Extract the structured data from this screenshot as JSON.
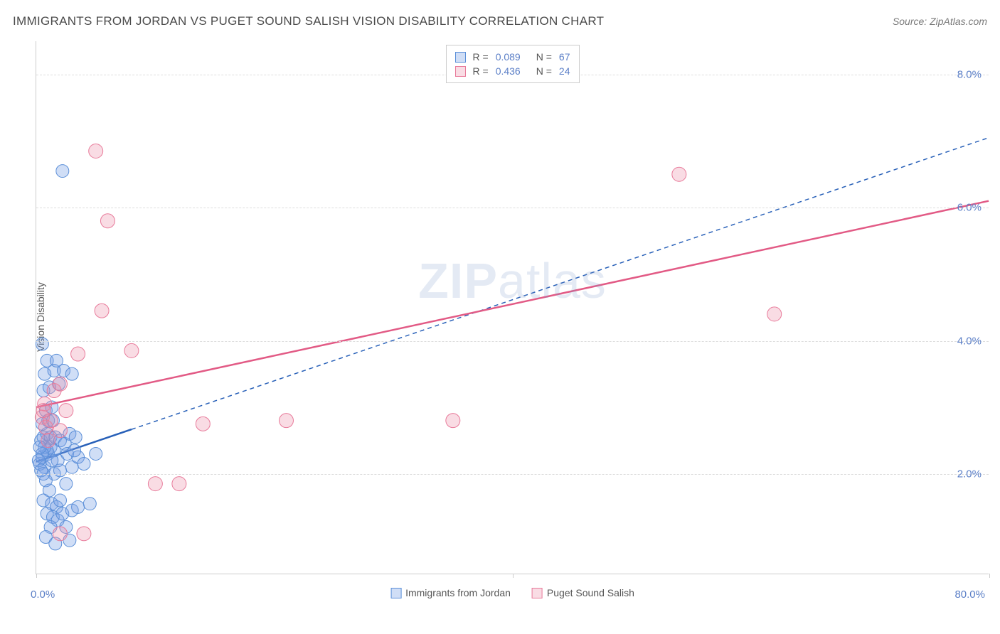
{
  "title": "IMMIGRANTS FROM JORDAN VS PUGET SOUND SALISH VISION DISABILITY CORRELATION CHART",
  "source": "Source: ZipAtlas.com",
  "y_axis_label": "Vision Disability",
  "watermark_bold": "ZIP",
  "watermark_rest": "atlas",
  "chart": {
    "type": "scatter",
    "xlim": [
      0,
      80
    ],
    "ylim": [
      0.5,
      8.5
    ],
    "x_ticks": [
      0,
      40,
      80
    ],
    "x_tick_labels": [
      "0.0%",
      "",
      "80.0%"
    ],
    "y_ticks": [
      2,
      4,
      6,
      8
    ],
    "y_tick_labels": [
      "2.0%",
      "4.0%",
      "6.0%",
      "8.0%"
    ],
    "grid_color": "#dddddd",
    "axis_color": "#cccccc",
    "background_color": "#ffffff",
    "label_fontsize": 14,
    "tick_label_color": "#5b7fc7",
    "tick_fontsize": 15
  },
  "series": [
    {
      "name": "Immigrants from Jordan",
      "color_fill": "rgba(120,160,230,0.35)",
      "color_stroke": "#5b8fd8",
      "marker_radius": 9,
      "trend_line_color": "#2860b8",
      "trend_line_style": "solid-then-dashed",
      "trend_solid_end_x": 8,
      "trend_start": {
        "x": 0.0,
        "y": 2.18
      },
      "trend_end": {
        "x": 80.0,
        "y": 7.05
      },
      "R": "0.089",
      "N": "67",
      "points": [
        {
          "x": 0.3,
          "y": 2.15
        },
        {
          "x": 0.5,
          "y": 2.25
        },
        {
          "x": 0.7,
          "y": 2.1
        },
        {
          "x": 1.0,
          "y": 2.3
        },
        {
          "x": 1.2,
          "y": 2.4
        },
        {
          "x": 1.5,
          "y": 2.0
        },
        {
          "x": 0.8,
          "y": 1.9
        },
        {
          "x": 1.1,
          "y": 1.75
        },
        {
          "x": 0.6,
          "y": 1.6
        },
        {
          "x": 1.3,
          "y": 1.55
        },
        {
          "x": 1.7,
          "y": 1.5
        },
        {
          "x": 2.0,
          "y": 1.6
        },
        {
          "x": 0.9,
          "y": 1.4
        },
        {
          "x": 1.4,
          "y": 1.35
        },
        {
          "x": 1.8,
          "y": 1.3
        },
        {
          "x": 2.2,
          "y": 1.4
        },
        {
          "x": 3.0,
          "y": 1.45
        },
        {
          "x": 3.5,
          "y": 1.5
        },
        {
          "x": 1.2,
          "y": 1.2
        },
        {
          "x": 2.5,
          "y": 1.2
        },
        {
          "x": 0.8,
          "y": 1.05
        },
        {
          "x": 1.6,
          "y": 0.95
        },
        {
          "x": 2.8,
          "y": 1.0
        },
        {
          "x": 0.4,
          "y": 2.5
        },
        {
          "x": 0.6,
          "y": 2.55
        },
        {
          "x": 0.9,
          "y": 2.6
        },
        {
          "x": 1.2,
          "y": 2.55
        },
        {
          "x": 1.6,
          "y": 2.55
        },
        {
          "x": 2.0,
          "y": 2.5
        },
        {
          "x": 2.4,
          "y": 2.45
        },
        {
          "x": 0.5,
          "y": 2.75
        },
        {
          "x": 1.0,
          "y": 2.8
        },
        {
          "x": 1.4,
          "y": 2.8
        },
        {
          "x": 0.8,
          "y": 2.95
        },
        {
          "x": 1.3,
          "y": 3.0
        },
        {
          "x": 0.6,
          "y": 3.25
        },
        {
          "x": 1.1,
          "y": 3.3
        },
        {
          "x": 1.9,
          "y": 3.35
        },
        {
          "x": 0.7,
          "y": 3.5
        },
        {
          "x": 1.5,
          "y": 3.55
        },
        {
          "x": 2.3,
          "y": 3.55
        },
        {
          "x": 3.0,
          "y": 3.5
        },
        {
          "x": 0.9,
          "y": 3.7
        },
        {
          "x": 1.7,
          "y": 3.7
        },
        {
          "x": 0.5,
          "y": 3.95
        },
        {
          "x": 3.0,
          "y": 2.1
        },
        {
          "x": 3.5,
          "y": 2.25
        },
        {
          "x": 4.0,
          "y": 2.15
        },
        {
          "x": 4.5,
          "y": 1.55
        },
        {
          "x": 5.0,
          "y": 2.3
        },
        {
          "x": 2.2,
          "y": 6.55
        },
        {
          "x": 2.6,
          "y": 2.3
        },
        {
          "x": 3.2,
          "y": 2.35
        },
        {
          "x": 2.5,
          "y": 1.85
        },
        {
          "x": 2.0,
          "y": 2.05
        },
        {
          "x": 1.8,
          "y": 2.2
        },
        {
          "x": 1.5,
          "y": 2.35
        },
        {
          "x": 1.3,
          "y": 2.2
        },
        {
          "x": 0.9,
          "y": 2.35
        },
        {
          "x": 0.7,
          "y": 2.4
        },
        {
          "x": 0.5,
          "y": 2.3
        },
        {
          "x": 0.3,
          "y": 2.4
        },
        {
          "x": 0.2,
          "y": 2.2
        },
        {
          "x": 0.4,
          "y": 2.05
        },
        {
          "x": 0.6,
          "y": 2.0
        },
        {
          "x": 2.8,
          "y": 2.6
        },
        {
          "x": 3.3,
          "y": 2.55
        }
      ]
    },
    {
      "name": "Puget Sound Salish",
      "color_fill": "rgba(235,140,165,0.3)",
      "color_stroke": "#e87a9a",
      "marker_radius": 10,
      "trend_line_color": "#e25a85",
      "trend_line_style": "solid",
      "trend_start": {
        "x": 0.0,
        "y": 3.0
      },
      "trend_end": {
        "x": 80.0,
        "y": 6.1
      },
      "R": "0.436",
      "N": "24",
      "points": [
        {
          "x": 0.5,
          "y": 2.85
        },
        {
          "x": 0.8,
          "y": 2.7
        },
        {
          "x": 1.0,
          "y": 2.5
        },
        {
          "x": 2.0,
          "y": 2.65
        },
        {
          "x": 2.5,
          "y": 2.95
        },
        {
          "x": 10.0,
          "y": 1.85
        },
        {
          "x": 12.0,
          "y": 1.85
        },
        {
          "x": 14.0,
          "y": 2.75
        },
        {
          "x": 21.0,
          "y": 2.8
        },
        {
          "x": 1.5,
          "y": 3.25
        },
        {
          "x": 3.5,
          "y": 3.8
        },
        {
          "x": 8.0,
          "y": 3.85
        },
        {
          "x": 5.5,
          "y": 4.45
        },
        {
          "x": 2.0,
          "y": 3.35
        },
        {
          "x": 0.7,
          "y": 3.05
        },
        {
          "x": 1.2,
          "y": 2.8
        },
        {
          "x": 6.0,
          "y": 5.8
        },
        {
          "x": 5.0,
          "y": 6.85
        },
        {
          "x": 35.0,
          "y": 2.8
        },
        {
          "x": 2.0,
          "y": 1.1
        },
        {
          "x": 4.0,
          "y": 1.1
        },
        {
          "x": 54.0,
          "y": 6.5
        },
        {
          "x": 62.0,
          "y": 4.4
        },
        {
          "x": 0.6,
          "y": 2.95
        }
      ]
    }
  ],
  "legend": {
    "r_label": "R =",
    "n_label": "N ="
  }
}
